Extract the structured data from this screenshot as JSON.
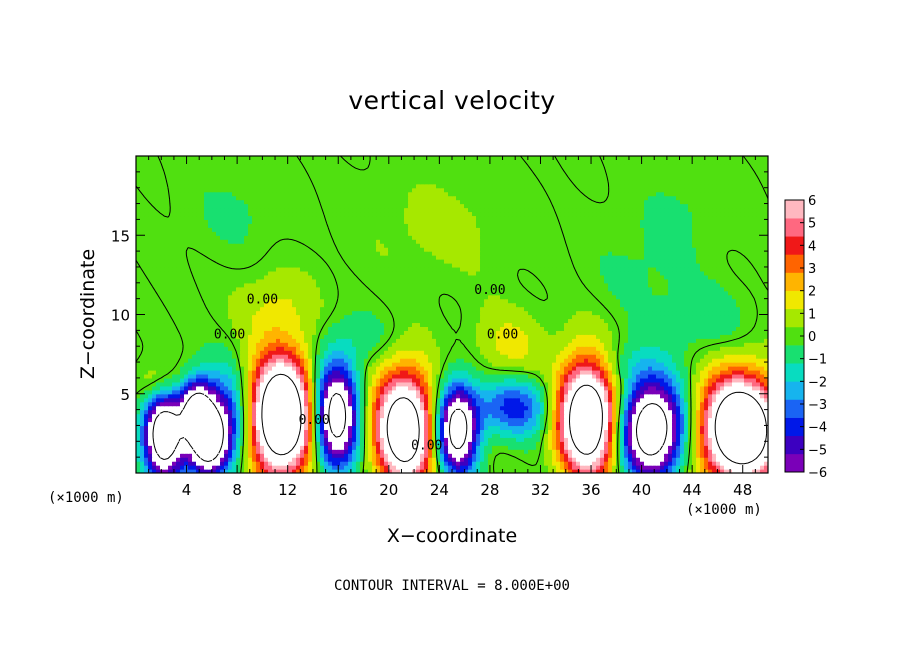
{
  "chart_data": {
    "type": "heatmap",
    "title": "vertical velocity",
    "xlabel": "X−coordinate",
    "ylabel": "Z−coordinate",
    "x_unit": "(×1000 m)",
    "xlim": [
      0,
      50
    ],
    "ylim": [
      0,
      20
    ],
    "x_ticks": [
      4,
      8,
      12,
      16,
      20,
      24,
      28,
      32,
      36,
      40,
      44,
      48
    ],
    "x_tick_labels": [
      "4",
      "8",
      "12",
      "16",
      "20",
      "24",
      "28",
      "32",
      "36",
      "40",
      "44",
      "48"
    ],
    "y_ticks": [
      5,
      10,
      15
    ],
    "y_tick_labels": [
      "5",
      "10",
      "15"
    ],
    "colorbar": {
      "min": -6,
      "max": 6,
      "ticks": [
        6,
        5,
        4,
        3,
        2,
        1,
        0,
        -1,
        -2,
        -3,
        -4,
        -5,
        -6
      ],
      "tick_labels": [
        "6",
        "5",
        "4",
        "3",
        "2",
        "1",
        "0",
        "−1",
        "−2",
        "−3",
        "−4",
        "−5",
        "−6"
      ],
      "colors": [
        "#7a00b8",
        "#3c00c0",
        "#0018e8",
        "#1a64f4",
        "#16b4ee",
        "#08dcc0",
        "#18e070",
        "#50e010",
        "#a6e800",
        "#f0e800",
        "#ffb400",
        "#ff6400",
        "#f01818",
        "#ff6880",
        "#ffb8c0"
      ]
    },
    "cells": [
      {
        "x": 2.2,
        "z": 2.4,
        "sx": 1.1,
        "sz": 2.0,
        "w": -11
      },
      {
        "x": 4.8,
        "z": 4.0,
        "sx": 0.9,
        "sz": 1.3,
        "w": -9
      },
      {
        "x": 5.6,
        "z": 2.0,
        "sx": 1.0,
        "sz": 1.4,
        "w": -9
      },
      {
        "x": 7.0,
        "z": 3.2,
        "sx": 1.3,
        "sz": 2.2,
        "w": -5
      },
      {
        "x": 11.5,
        "z": 3.6,
        "sx": 1.7,
        "sz": 2.6,
        "w": 13
      },
      {
        "x": 15.8,
        "z": 3.6,
        "sx": 1.2,
        "sz": 2.3,
        "w": -10
      },
      {
        "x": 21.2,
        "z": 2.8,
        "sx": 1.6,
        "sz": 2.5,
        "w": 11
      },
      {
        "x": 25.4,
        "z": 2.8,
        "sx": 1.1,
        "sz": 1.9,
        "w": -10
      },
      {
        "x": 30.0,
        "z": 4.2,
        "sx": 2.1,
        "sz": 1.3,
        "w": -4
      },
      {
        "x": 35.7,
        "z": 3.5,
        "sx": 1.6,
        "sz": 2.5,
        "w": 12
      },
      {
        "x": 40.8,
        "z": 2.8,
        "sx": 1.7,
        "sz": 2.1,
        "w": -11
      },
      {
        "x": 47.8,
        "z": 2.8,
        "sx": 2.1,
        "sz": 2.3,
        "w": 13
      },
      {
        "x": 1.8,
        "z": 5.5,
        "sx": 1.2,
        "sz": 1.1,
        "w": 2.5
      },
      {
        "x": 29.5,
        "z": 8.0,
        "sx": 2.0,
        "sz": 1.6,
        "w": 1.5
      },
      {
        "x": 11.0,
        "z": 10.5,
        "sx": 2.2,
        "sz": 1.6,
        "w": 1.2
      },
      {
        "x": 38.5,
        "z": 6.8,
        "sx": 2.0,
        "sz": 1.1,
        "w": -1.2
      },
      {
        "x": 45.0,
        "z": 9.5,
        "sx": 2.5,
        "sz": 1.6,
        "w": -0.9
      },
      {
        "x": 24.0,
        "z": 15.5,
        "sx": 4.5,
        "sz": 2.5,
        "w": 0.6
      },
      {
        "x": 8.0,
        "z": 16.5,
        "sx": 3.0,
        "sz": 2.0,
        "w": -0.5
      },
      {
        "x": 40.0,
        "z": 13.0,
        "sx": 3.0,
        "sz": 2.5,
        "w": -0.5
      },
      {
        "x": 18.0,
        "z": 8.5,
        "sx": 2.0,
        "sz": 1.2,
        "w": -0.8
      },
      {
        "x": 44.0,
        "z": 17.0,
        "sx": 3.0,
        "sz": 2.0,
        "w": -0.4
      }
    ],
    "contour_labels": [
      {
        "x": 28.0,
        "z": 11.6,
        "text": "0.00"
      },
      {
        "x": 7.4,
        "z": 8.8,
        "text": "0.00"
      },
      {
        "x": 10.0,
        "z": 11.0,
        "text": "0.00"
      },
      {
        "x": 23.0,
        "z": 1.8,
        "text": "0.00"
      },
      {
        "x": 14.1,
        "z": 3.4,
        "text": "0.00"
      },
      {
        "x": 29.0,
        "z": 8.8,
        "text": "0.00"
      }
    ],
    "annotations": [
      "CONTOUR INTERVAL = 8.000E+00"
    ]
  }
}
